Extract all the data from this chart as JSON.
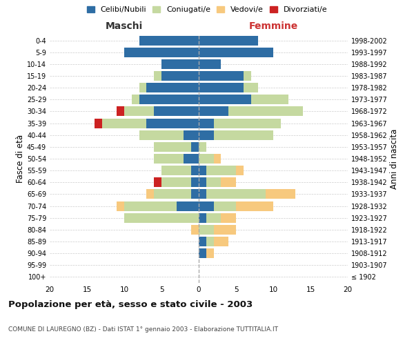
{
  "age_groups": [
    "100+",
    "95-99",
    "90-94",
    "85-89",
    "80-84",
    "75-79",
    "70-74",
    "65-69",
    "60-64",
    "55-59",
    "50-54",
    "45-49",
    "40-44",
    "35-39",
    "30-34",
    "25-29",
    "20-24",
    "15-19",
    "10-14",
    "5-9",
    "0-4"
  ],
  "birth_years": [
    "≤ 1902",
    "1903-1907",
    "1908-1912",
    "1913-1917",
    "1918-1922",
    "1923-1927",
    "1928-1932",
    "1933-1937",
    "1938-1942",
    "1943-1947",
    "1948-1952",
    "1953-1957",
    "1958-1962",
    "1963-1967",
    "1968-1972",
    "1973-1977",
    "1978-1982",
    "1983-1987",
    "1988-1992",
    "1993-1997",
    "1998-2002"
  ],
  "male": {
    "celibi": [
      0,
      0,
      0,
      0,
      0,
      0,
      3,
      1,
      1,
      1,
      2,
      1,
      2,
      7,
      6,
      8,
      7,
      5,
      5,
      10,
      8
    ],
    "coniugati": [
      0,
      0,
      0,
      0,
      0,
      10,
      7,
      5,
      4,
      4,
      4,
      5,
      6,
      6,
      4,
      1,
      1,
      1,
      0,
      0,
      0
    ],
    "vedovi": [
      0,
      0,
      0,
      0,
      1,
      0,
      1,
      1,
      0,
      0,
      0,
      0,
      0,
      0,
      0,
      0,
      0,
      0,
      0,
      0,
      0
    ],
    "divorziati": [
      0,
      0,
      0,
      0,
      0,
      0,
      0,
      0,
      1,
      0,
      0,
      0,
      0,
      1,
      1,
      0,
      0,
      0,
      0,
      0,
      0
    ]
  },
  "female": {
    "nubili": [
      0,
      0,
      1,
      1,
      0,
      1,
      2,
      1,
      1,
      1,
      0,
      0,
      2,
      2,
      4,
      7,
      6,
      6,
      3,
      10,
      8
    ],
    "coniugate": [
      0,
      0,
      0,
      1,
      2,
      2,
      3,
      8,
      2,
      4,
      2,
      1,
      8,
      9,
      10,
      5,
      2,
      1,
      0,
      0,
      0
    ],
    "vedove": [
      0,
      0,
      1,
      2,
      3,
      2,
      5,
      4,
      2,
      1,
      1,
      0,
      0,
      0,
      0,
      0,
      0,
      0,
      0,
      0,
      0
    ],
    "divorziate": [
      0,
      0,
      0,
      0,
      0,
      0,
      0,
      0,
      0,
      0,
      0,
      0,
      0,
      0,
      0,
      0,
      0,
      0,
      0,
      0,
      0
    ]
  },
  "colors": {
    "celibi": "#2e6da4",
    "coniugati": "#c5d9a0",
    "vedovi": "#f7c97e",
    "divorziati": "#cc2222"
  },
  "xlim": 20,
  "title": "Popolazione per età, sesso e stato civile - 2003",
  "subtitle": "COMUNE DI LAUREGNO (BZ) - Dati ISTAT 1° gennaio 2003 - Elaborazione TUTTITALIA.IT",
  "ylabel_left": "Fasce di età",
  "ylabel_right": "Anni di nascita",
  "xlabel_left": "Maschi",
  "xlabel_right": "Femmine",
  "legend_labels": [
    "Celibi/Nubili",
    "Coniugati/e",
    "Vedovi/e",
    "Divorziati/e"
  ],
  "background_color": "#ffffff",
  "grid_color": "#cccccc",
  "femmine_color": "#cc3333"
}
